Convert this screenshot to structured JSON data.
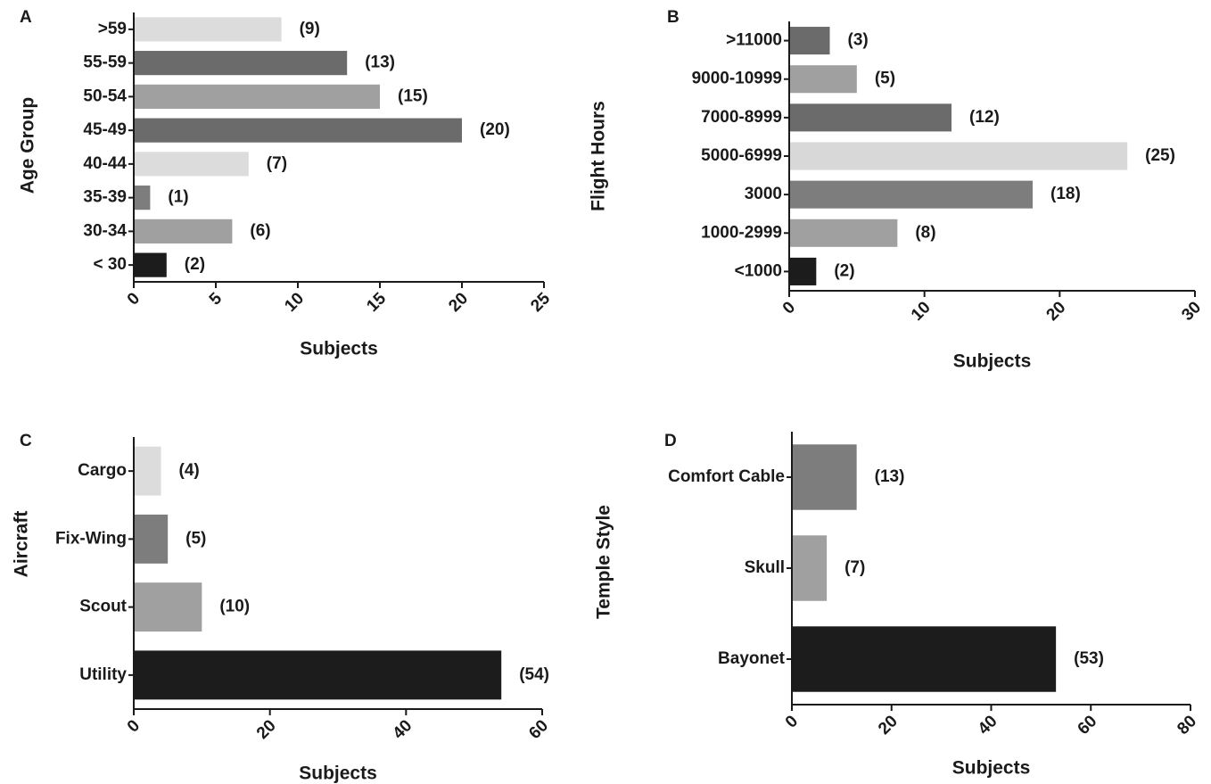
{
  "chart_data": [
    {
      "type": "bar",
      "orientation": "horizontal",
      "panel": "A",
      "ylabel": "Age Group",
      "xlabel": "Subjects",
      "categories": [
        ">59",
        "55-59",
        "50-54",
        "45-49",
        "40-44",
        "35-39",
        "30-34",
        "< 30"
      ],
      "values": [
        9,
        13,
        15,
        20,
        7,
        1,
        6,
        2
      ],
      "value_labels": [
        "(9)",
        "(13)",
        "(15)",
        "(20)",
        "(7)",
        "(1)",
        "(6)",
        "(2)"
      ],
      "colors": [
        "#dcdcdc",
        "#6b6b6b",
        "#a0a0a0",
        "#6b6b6b",
        "#dcdcdc",
        "#7d7d7d",
        "#a0a0a0",
        "#1c1c1c"
      ],
      "xlim": [
        0,
        25
      ],
      "xticks": [
        0,
        5,
        10,
        15,
        20,
        25
      ]
    },
    {
      "type": "bar",
      "orientation": "horizontal",
      "panel": "B",
      "ylabel": "Flight Hours",
      "xlabel": "Subjects",
      "categories": [
        ">11000",
        "9000-10999",
        "7000-8999",
        "5000-6999",
        "3000",
        "1000-2999",
        "<1000"
      ],
      "values": [
        3,
        5,
        12,
        25,
        18,
        8,
        2
      ],
      "value_labels": [
        "(3)",
        "(5)",
        "(12)",
        "(25)",
        "(18)",
        "(8)",
        "(2)"
      ],
      "colors": [
        "#6b6b6b",
        "#a0a0a0",
        "#6b6b6b",
        "#d8d8d8",
        "#7d7d7d",
        "#a0a0a0",
        "#1c1c1c"
      ],
      "xlim": [
        0,
        30
      ],
      "xticks": [
        0,
        10,
        20,
        30
      ]
    },
    {
      "type": "bar",
      "orientation": "horizontal",
      "panel": "C",
      "ylabel": "Aircraft",
      "xlabel": "Subjects",
      "categories": [
        "Cargo",
        "Fix-Wing",
        "Scout",
        "Utility"
      ],
      "values": [
        4,
        5,
        10,
        54
      ],
      "value_labels": [
        "(4)",
        "(5)",
        "(10)",
        "(54)"
      ],
      "colors": [
        "#dcdcdc",
        "#7d7d7d",
        "#a0a0a0",
        "#1c1c1c"
      ],
      "xlim": [
        0,
        60
      ],
      "xticks": [
        0,
        20,
        40,
        60
      ]
    },
    {
      "type": "bar",
      "orientation": "horizontal",
      "panel": "D",
      "ylabel": "Temple Style",
      "xlabel": "Subjects",
      "categories": [
        "Comfort Cable",
        "Skull",
        "Bayonet"
      ],
      "values": [
        13,
        7,
        53
      ],
      "value_labels": [
        "(13)",
        "(7)",
        "(53)"
      ],
      "colors": [
        "#7d7d7d",
        "#a0a0a0",
        "#1c1c1c"
      ],
      "xlim": [
        0,
        80
      ],
      "xticks": [
        0,
        20,
        40,
        60,
        80
      ]
    }
  ]
}
